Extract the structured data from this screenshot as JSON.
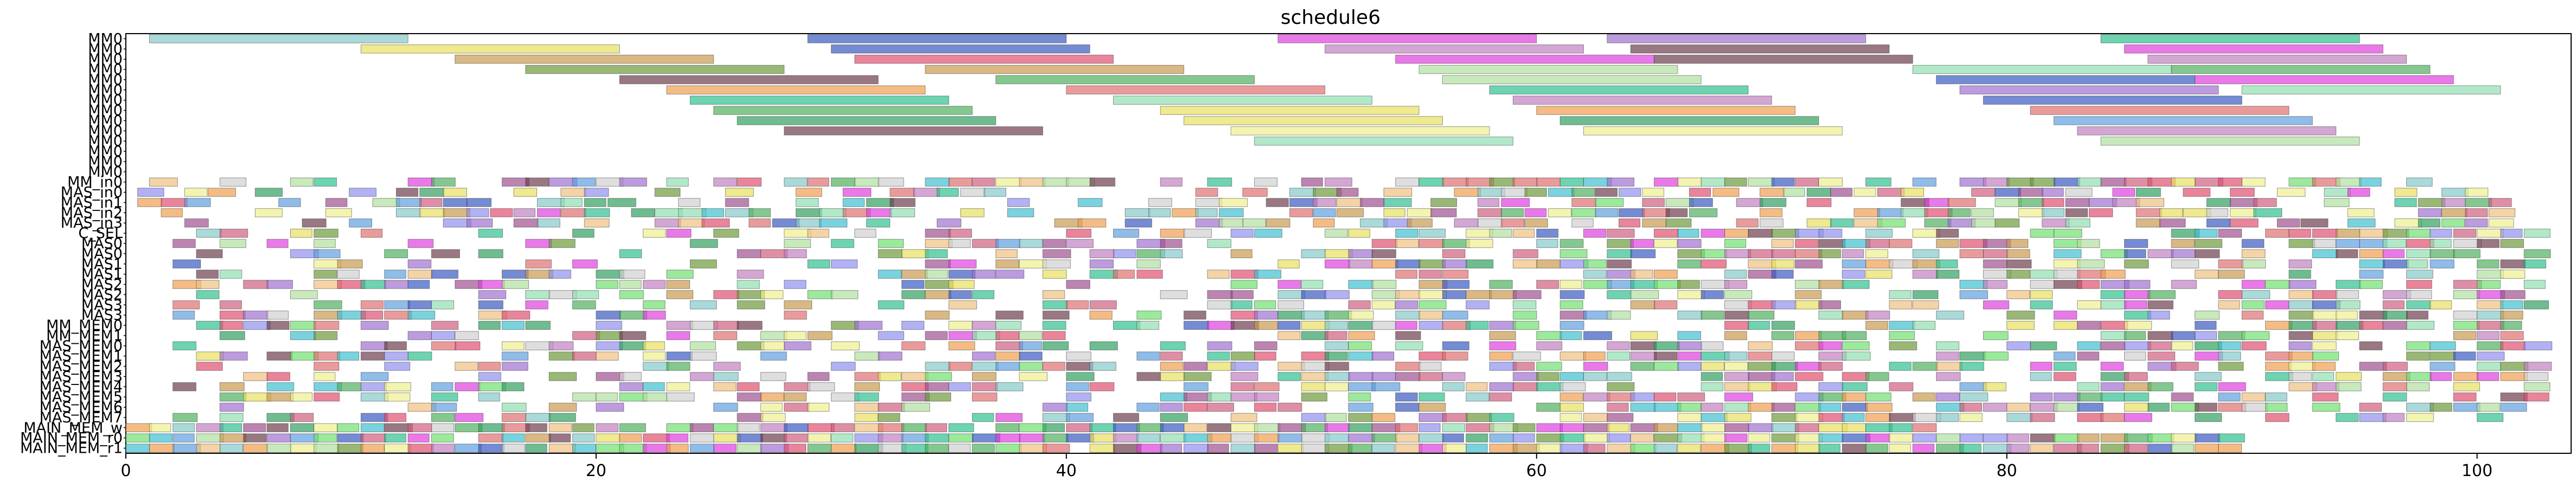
{
  "chart_data": {
    "type": "gantt",
    "title": "schedule6",
    "xlabel": "",
    "ylabel": "",
    "xlim": [
      0,
      104
    ],
    "xticks": [
      0,
      20,
      40,
      60,
      80,
      100
    ],
    "grid": false,
    "legend": "none",
    "rows": [
      "MM0",
      "MM0",
      "MM0",
      "MM0",
      "MM0",
      "MM0",
      "MM0",
      "MM0",
      "MM0",
      "MM0",
      "MM0",
      "MM0",
      "MM0",
      "MM0",
      "MM_in0",
      "MAS_in0",
      "MAS_in1",
      "MAS_in2",
      "MAS_in3",
      "C_SEL",
      "MAS0",
      "MAS0",
      "MAS1",
      "MAS1",
      "MAS2",
      "MAS2",
      "MAS3",
      "MAS3",
      "MM_MEM0",
      "MM_MEM1",
      "MAS_MEM0",
      "MAS_MEM1",
      "MAS_MEM2",
      "MAS_MEM3",
      "MAS_MEM4",
      "MAS_MEM5",
      "MAS_MEM6",
      "MAS_MEM7",
      "MAIN_MEM_w",
      "MAIN_MEM_r0",
      "MAIN_MEM_r1"
    ],
    "palette": [
      "#86c9c9",
      "#e8e060",
      "#c99a50",
      "#6e9a3c",
      "#6e3e4e",
      "#f0a050",
      "#30c090",
      "#50b060",
      "#30a060",
      "#3a5ac0",
      "#e05070",
      "#a05090",
      "#e040e0",
      "#a070d0",
      "#40c0d0",
      "#90e0b0",
      "#f0c080",
      "#e07070",
      "#c080c0",
      "#60a0e0",
      "#b0e0a0",
      "#9090f0",
      "#d0d0d0",
      "#f0f090",
      "#d06080",
      "#70e070"
    ],
    "mm_bars": [
      {
        "row": 0,
        "start": 1,
        "end": 12,
        "c": 0
      },
      {
        "row": 0,
        "start": 29,
        "end": 40,
        "c": 9
      },
      {
        "row": 0,
        "start": 49,
        "end": 60,
        "c": 12
      },
      {
        "row": 0,
        "start": 63,
        "end": 74,
        "c": 13
      },
      {
        "row": 0,
        "start": 84,
        "end": 95,
        "c": 6
      },
      {
        "row": 1,
        "start": 10,
        "end": 21,
        "c": 1
      },
      {
        "row": 1,
        "start": 30,
        "end": 41,
        "c": 9
      },
      {
        "row": 1,
        "start": 51,
        "end": 62,
        "c": 18
      },
      {
        "row": 1,
        "start": 64,
        "end": 75,
        "c": 4
      },
      {
        "row": 1,
        "start": 85,
        "end": 96,
        "c": 12
      },
      {
        "row": 2,
        "start": 14,
        "end": 25,
        "c": 2
      },
      {
        "row": 2,
        "start": 31,
        "end": 42,
        "c": 10
      },
      {
        "row": 2,
        "start": 54,
        "end": 65,
        "c": 12
      },
      {
        "row": 2,
        "start": 65,
        "end": 76,
        "c": 4
      },
      {
        "row": 2,
        "start": 86,
        "end": 97,
        "c": 18
      },
      {
        "row": 3,
        "start": 17,
        "end": 28,
        "c": 3
      },
      {
        "row": 3,
        "start": 34,
        "end": 45,
        "c": 2
      },
      {
        "row": 3,
        "start": 55,
        "end": 66,
        "c": 20
      },
      {
        "row": 3,
        "start": 76,
        "end": 87,
        "c": 15
      },
      {
        "row": 3,
        "start": 87,
        "end": 98,
        "c": 7
      },
      {
        "row": 4,
        "start": 21,
        "end": 32,
        "c": 4
      },
      {
        "row": 4,
        "start": 37,
        "end": 48,
        "c": 7
      },
      {
        "row": 4,
        "start": 56,
        "end": 67,
        "c": 20
      },
      {
        "row": 4,
        "start": 77,
        "end": 88,
        "c": 9
      },
      {
        "row": 4,
        "start": 88,
        "end": 99,
        "c": 12
      },
      {
        "row": 5,
        "start": 23,
        "end": 34,
        "c": 5
      },
      {
        "row": 5,
        "start": 40,
        "end": 51,
        "c": 17
      },
      {
        "row": 5,
        "start": 58,
        "end": 69,
        "c": 6
      },
      {
        "row": 5,
        "start": 78,
        "end": 89,
        "c": 13
      },
      {
        "row": 5,
        "start": 90,
        "end": 101,
        "c": 15
      },
      {
        "row": 6,
        "start": 24,
        "end": 35,
        "c": 6
      },
      {
        "row": 6,
        "start": 42,
        "end": 53,
        "c": 15
      },
      {
        "row": 6,
        "start": 59,
        "end": 70,
        "c": 18
      },
      {
        "row": 6,
        "start": 79,
        "end": 90,
        "c": 9
      },
      {
        "row": 7,
        "start": 25,
        "end": 36,
        "c": 7
      },
      {
        "row": 7,
        "start": 44,
        "end": 55,
        "c": 1
      },
      {
        "row": 7,
        "start": 60,
        "end": 71,
        "c": 5
      },
      {
        "row": 7,
        "start": 81,
        "end": 92,
        "c": 17
      },
      {
        "row": 8,
        "start": 26,
        "end": 37,
        "c": 8
      },
      {
        "row": 8,
        "start": 45,
        "end": 56,
        "c": 1
      },
      {
        "row": 8,
        "start": 61,
        "end": 72,
        "c": 8
      },
      {
        "row": 8,
        "start": 82,
        "end": 93,
        "c": 19
      },
      {
        "row": 9,
        "start": 28,
        "end": 39,
        "c": 4
      },
      {
        "row": 9,
        "start": 47,
        "end": 58,
        "c": 23
      },
      {
        "row": 9,
        "start": 62,
        "end": 73,
        "c": 23
      },
      {
        "row": 9,
        "start": 83,
        "end": 94,
        "c": 18
      },
      {
        "row": 10,
        "start": 48,
        "end": 59,
        "c": 15
      },
      {
        "row": 10,
        "start": 84,
        "end": 95,
        "c": 20
      }
    ],
    "small_start_row": 14,
    "small_end_row": 40,
    "bar_duration": 1
  }
}
